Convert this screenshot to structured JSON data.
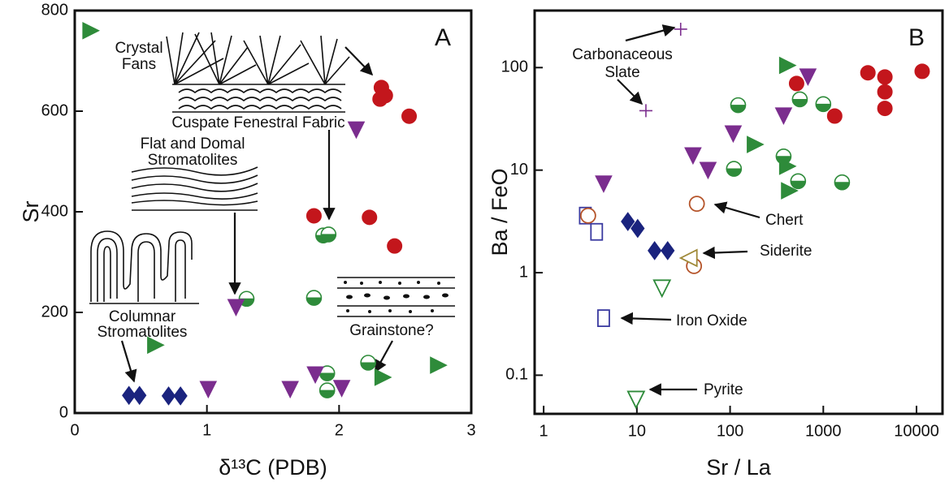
{
  "chart_data": [
    {
      "type": "scatter",
      "panel_label": "A",
      "xlabel": "δ¹³C (PDB)",
      "ylabel": "Sr",
      "xlim": [
        0,
        3
      ],
      "ylim": [
        0,
        800
      ],
      "xticks": [
        0,
        1,
        2,
        3
      ],
      "yticks": [
        0,
        200,
        400,
        600,
        800
      ],
      "annotations": [
        "Crystal",
        "Fans",
        "Cuspate Fenestral Fabric",
        "Flat and Domal",
        "Stromatolites",
        "Columnar",
        "Stromatolites",
        "Grainstone?"
      ],
      "series": [
        {
          "marker": "circle",
          "fill": "full",
          "color": "#c3161c",
          "x": [
            2.32,
            2.31,
            2.35,
            2.53,
            1.81,
            2.23,
            2.42
          ],
          "values": [
            647,
            624,
            631,
            590,
            392,
            389,
            332
          ]
        },
        {
          "marker": "circle",
          "fill": "half",
          "color": "#2e8b3a",
          "x": [
            1.88,
            1.92,
            1.3,
            1.81,
            1.91,
            1.91,
            2.22
          ],
          "values": [
            353,
            355,
            227,
            229,
            79,
            45,
            100
          ]
        },
        {
          "marker": "triangle-right",
          "fill": "full",
          "color": "#2e8b3a",
          "x": [
            0.11,
            0.6,
            2.32,
            2.74
          ],
          "values": [
            760,
            135,
            71,
            95
          ]
        },
        {
          "marker": "triangle-down",
          "fill": "full",
          "color": "#7b2d8e",
          "x": [
            2.13,
            1.22,
            1.01,
            1.63,
            1.82,
            2.02
          ],
          "values": [
            566,
            213,
            50,
            50,
            79,
            52
          ]
        },
        {
          "marker": "diamond",
          "fill": "full",
          "color": "#1a237e",
          "x": [
            0.41,
            0.49,
            0.71,
            0.8
          ],
          "values": [
            35,
            35,
            34,
            34
          ]
        }
      ]
    },
    {
      "type": "scatter",
      "panel_label": "B",
      "xlabel": "Sr / La",
      "ylabel": "Ba / FeO",
      "xlog": true,
      "ylog": true,
      "xlim": [
        0.8,
        19000
      ],
      "ylim": [
        0.042,
        360
      ],
      "xticks": [
        1,
        10,
        100,
        1000,
        10000
      ],
      "yticks": [
        0.1,
        1,
        10,
        100
      ],
      "annotations": [
        "Carbonaceous",
        "Slate",
        "Chert",
        "Siderite",
        "Iron Oxide",
        "Pyrite"
      ],
      "series": [
        {
          "marker": "plus",
          "fill": "open",
          "color": "#7b2d8e",
          "x": [
            29.5,
            12.5
          ],
          "values": [
            237,
            38
          ]
        },
        {
          "marker": "circle",
          "fill": "full",
          "color": "#c3161c",
          "x": [
            517,
            1325,
            3010,
            4580,
            4580,
            4580,
            11500
          ],
          "values": [
            70,
            33.7,
            89,
            81,
            58,
            40,
            92
          ]
        },
        {
          "marker": "circle",
          "fill": "half",
          "color": "#2e8b3a",
          "x": [
            122,
            110,
            560,
            1000,
            375,
            537,
            1590
          ],
          "values": [
            43,
            10.3,
            49,
            44,
            13.6,
            7.8,
            7.6
          ]
        },
        {
          "marker": "triangle-right",
          "fill": "full",
          "color": "#2e8b3a",
          "x": [
            398,
            179,
            398,
            417
          ],
          "values": [
            105,
            17.8,
            10.9,
            6.3
          ]
        },
        {
          "marker": "triangle-down",
          "fill": "full",
          "color": "#7b2d8e",
          "x": [
            4.4,
            40,
            58,
            108,
            375,
            684
          ],
          "values": [
            7.6,
            14.3,
            10.3,
            23.4,
            35,
            84
          ]
        },
        {
          "marker": "diamond",
          "fill": "full",
          "color": "#1a237e",
          "x": [
            8.0,
            10.2,
            15.5,
            21.4
          ],
          "values": [
            3.15,
            2.7,
            1.64,
            1.64
          ]
        },
        {
          "marker": "square",
          "fill": "open",
          "color": "#3a3aa0",
          "x": [
            2.8,
            3.7,
            4.4
          ],
          "values": [
            3.6,
            2.5,
            0.36
          ]
        },
        {
          "marker": "circle",
          "fill": "open",
          "color": "#b5542a",
          "x": [
            3.0,
            44,
            41
          ],
          "values": [
            3.6,
            4.7,
            1.16
          ]
        },
        {
          "marker": "triangle-left",
          "fill": "open",
          "color": "#a08a3a",
          "x": [
            37.5
          ],
          "values": [
            1.39
          ]
        },
        {
          "marker": "triangle-down",
          "fill": "open",
          "color": "#2e8b3a",
          "x": [
            18.6,
            9.8
          ],
          "values": [
            0.73,
            0.06
          ]
        }
      ]
    }
  ]
}
